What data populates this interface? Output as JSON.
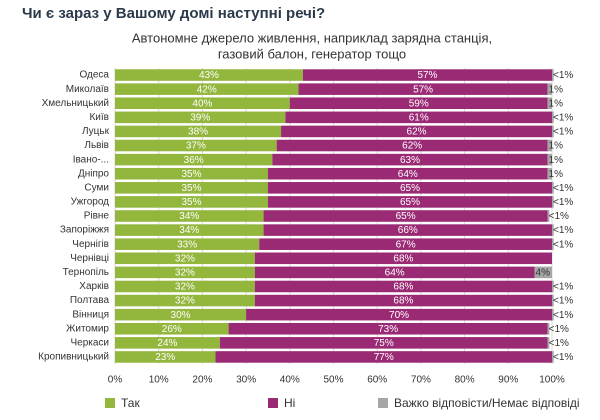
{
  "chart_data": {
    "type": "stacked-bar-horizontal",
    "title": "Чи є зараз у Вашому домі наступні речі?",
    "subtitle": [
      "Автономне джерело живлення, наприклад зарядна станція,",
      "газовий балон, генератор тощо"
    ],
    "categories": [
      "Одеса",
      "Миколаїв",
      "Хмельницький",
      "Київ",
      "Луцьк",
      "Львів",
      "Івано-...",
      "Дніпро",
      "Суми",
      "Ужгород",
      "Рівне",
      "Запоріжжя",
      "Чернігів",
      "Чернівці",
      "Тернопіль",
      "Харків",
      "Полтава",
      "Вінниця",
      "Житомир",
      "Черкаси",
      "Кропивницький"
    ],
    "series": [
      {
        "name": "Так",
        "color": "#93b63d",
        "values": [
          43,
          42,
          40,
          39,
          38,
          37,
          36,
          35,
          35,
          35,
          34,
          34,
          33,
          32,
          32,
          32,
          32,
          30,
          26,
          24,
          23
        ],
        "value_labels": [
          "43%",
          "42%",
          "40%",
          "39%",
          "38%",
          "37%",
          "36%",
          "35%",
          "35%",
          "35%",
          "34%",
          "34%",
          "33%",
          "32%",
          "32%",
          "32%",
          "32%",
          "30%",
          "26%",
          "24%",
          "23%"
        ]
      },
      {
        "name": "Ні",
        "color": "#9b2a75",
        "values": [
          57,
          57,
          59,
          61,
          62,
          62,
          63,
          64,
          65,
          65,
          65,
          66,
          67,
          68,
          64,
          68,
          68,
          70,
          73,
          75,
          77
        ],
        "value_labels": [
          "57%",
          "57%",
          "59%",
          "61%",
          "62%",
          "62%",
          "63%",
          "64%",
          "65%",
          "65%",
          "65%",
          "66%",
          "67%",
          "68%",
          "64%",
          "68%",
          "68%",
          "70%",
          "73%",
          "75%",
          "77%"
        ]
      },
      {
        "name": "Важко відповісти/Немає відповіді",
        "color": "#a6a6a6",
        "values": [
          0.4,
          1,
          1,
          0.4,
          0.4,
          1,
          1,
          1,
          0.4,
          0.4,
          0.4,
          0.4,
          0.4,
          null,
          4,
          0.4,
          0.4,
          0.4,
          0.4,
          0.4,
          0.4
        ],
        "value_labels": [
          "<1%",
          "1%",
          "1%",
          "<1%",
          "<1%",
          "1%",
          "1%",
          "1%",
          "<1%",
          "<1%",
          "<1%",
          "<1%",
          "<1%",
          null,
          "4%",
          "<1%",
          "<1%",
          "<1%",
          "<1%",
          "<1%",
          "<1%"
        ]
      }
    ],
    "xlim": [
      0,
      100
    ],
    "xticks": [
      {
        "value": 0,
        "label": "0%"
      },
      {
        "value": 10,
        "label": "10%"
      },
      {
        "value": 20,
        "label": "20%"
      },
      {
        "value": 30,
        "label": "30%"
      },
      {
        "value": 40,
        "label": "40%"
      },
      {
        "value": 50,
        "label": "50%"
      },
      {
        "value": 60,
        "label": "60%"
      },
      {
        "value": 70,
        "label": "70%"
      },
      {
        "value": 80,
        "label": "80%"
      },
      {
        "value": 90,
        "label": "90%"
      },
      {
        "value": 100,
        "label": "100%"
      }
    ],
    "grid": true
  }
}
